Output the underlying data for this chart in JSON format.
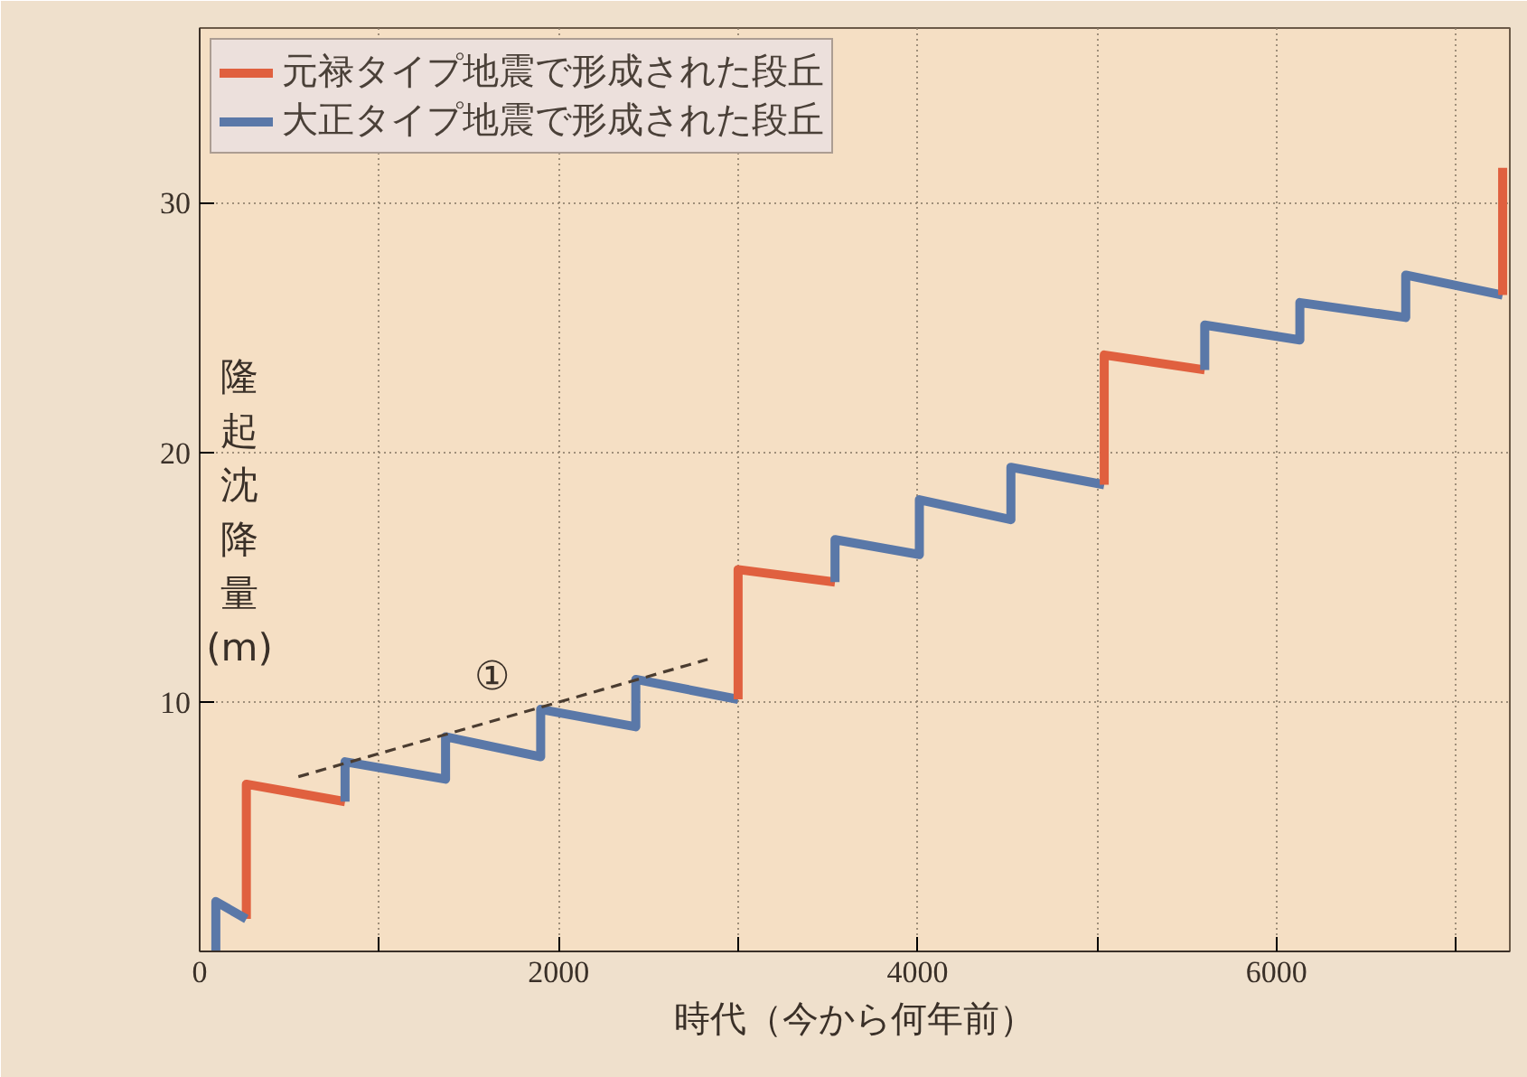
{
  "chart_data": {
    "type": "line",
    "xlabel": "時代（今から何年前）",
    "ylabel": "隆起沈降量(m)",
    "xlim": [
      0,
      7300
    ],
    "ylim": [
      0,
      37
    ],
    "xticks": [
      0,
      {
        "value": 1000,
        "label": null
      },
      2000,
      {
        "value": 3000,
        "label": null
      },
      4000,
      {
        "value": 5000,
        "label": null
      },
      6000,
      {
        "value": 7000,
        "label": null
      }
    ],
    "yticks": [
      10,
      20,
      30
    ],
    "grid": true,
    "legend": "top left",
    "line_style": "solid",
    "marker": "none",
    "series": [
      {
        "name": "元禄タイプ地震で形成された段丘",
        "color": "#e0603f",
        "x": [
          260,
          260,
          810
        ],
        "values": [
          1.3,
          6.7,
          6.0
        ]
      },
      {
        "name": "大正タイプ地震で形成された段丘",
        "color": "#5a78a8",
        "x": [
          90,
          90,
          260
        ],
        "values": [
          0,
          2.0,
          1.3
        ]
      },
      {
        "color": "#5a78a8",
        "x": [
          810,
          810,
          1370,
          1370,
          1900,
          1900,
          2430,
          2430,
          3000
        ],
        "values": [
          6.0,
          7.6,
          6.9,
          8.6,
          7.8,
          9.7,
          9.0,
          10.9,
          10.1
        ]
      },
      {
        "color": "#e0603f",
        "x": [
          3000,
          3000,
          3540
        ],
        "values": [
          10.1,
          15.3,
          14.8
        ]
      },
      {
        "color": "#5a78a8",
        "x": [
          3540,
          3540,
          4010,
          4010,
          4520,
          4520,
          5040
        ],
        "values": [
          14.8,
          16.5,
          15.9,
          18.1,
          17.3,
          19.4,
          18.7
        ]
      },
      {
        "color": "#e0603f",
        "x": [
          5040,
          5040,
          5600
        ],
        "values": [
          18.7,
          23.9,
          23.3
        ]
      },
      {
        "color": "#5a78a8",
        "x": [
          5600,
          5600,
          6130,
          6130,
          6720,
          6720,
          7260
        ],
        "values": [
          23.3,
          25.1,
          24.5,
          26.0,
          25.4,
          27.1,
          26.3
        ]
      },
      {
        "color": "#e0603f",
        "x": [
          7260,
          7260
        ],
        "values": [
          26.3,
          31.4
        ]
      },
      {
        "color": "#4a3c30",
        "line_style": "dashed",
        "x": [
          550,
          2830
        ],
        "values": [
          7.0,
          11.7
        ]
      }
    ],
    "annotations": [
      {
        "text": "①",
        "x": 1630,
        "y": 9.2
      }
    ]
  }
}
